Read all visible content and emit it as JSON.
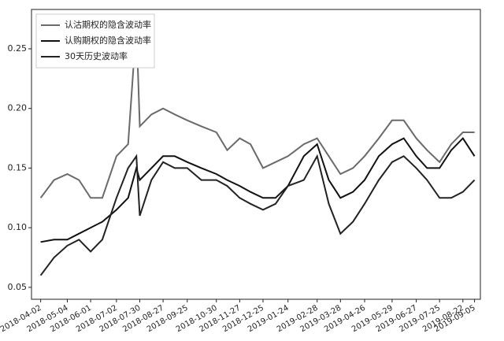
{
  "chart_data": {
    "type": "line",
    "x": [
      "2018-04-02",
      "2018-04-18",
      "2018-05-04",
      "2018-05-18",
      "2018-06-01",
      "2018-06-15",
      "2018-07-02",
      "2018-07-16",
      "2018-07-26",
      "2018-07-30",
      "2018-08-13",
      "2018-08-27",
      "2018-09-10",
      "2018-09-25",
      "2018-10-12",
      "2018-10-30",
      "2018-11-12",
      "2018-11-27",
      "2018-12-10",
      "2018-12-25",
      "2019-01-09",
      "2019-01-24",
      "2019-02-12",
      "2019-02-28",
      "2019-03-14",
      "2019-03-28",
      "2019-04-12",
      "2019-04-26",
      "2019-05-13",
      "2019-05-29",
      "2019-06-12",
      "2019-06-27",
      "2019-07-10",
      "2019-07-25",
      "2019-08-08",
      "2019-08-22",
      "2019-09-05"
    ],
    "series": [
      {
        "name": "认沽期权的隐含波动率",
        "color": "#6a6a6a",
        "values": [
          0.125,
          0.14,
          0.145,
          0.14,
          0.125,
          0.125,
          0.16,
          0.17,
          0.27,
          0.185,
          0.195,
          0.2,
          0.195,
          0.19,
          0.185,
          0.18,
          0.165,
          0.175,
          0.17,
          0.15,
          0.155,
          0.16,
          0.17,
          0.175,
          0.16,
          0.145,
          0.15,
          0.16,
          0.175,
          0.19,
          0.19,
          0.175,
          0.165,
          0.155,
          0.17,
          0.18,
          0.18
        ]
      },
      {
        "name": "认购期权的隐含波动率",
        "color": "#111111",
        "values": [
          0.088,
          0.09,
          0.09,
          0.095,
          0.1,
          0.105,
          0.115,
          0.125,
          0.15,
          0.14,
          0.15,
          0.16,
          0.16,
          0.155,
          0.15,
          0.145,
          0.14,
          0.135,
          0.13,
          0.125,
          0.125,
          0.135,
          0.16,
          0.17,
          0.14,
          0.125,
          0.13,
          0.14,
          0.16,
          0.17,
          0.175,
          0.16,
          0.15,
          0.15,
          0.165,
          0.175,
          0.16
        ]
      },
      {
        "name": "30天历史波动率",
        "color": "#222222",
        "values": [
          0.06,
          0.075,
          0.085,
          0.09,
          0.08,
          0.09,
          0.125,
          0.15,
          0.16,
          0.11,
          0.14,
          0.155,
          0.15,
          0.15,
          0.14,
          0.14,
          0.135,
          0.125,
          0.12,
          0.115,
          0.12,
          0.135,
          0.14,
          0.16,
          0.12,
          0.095,
          0.105,
          0.12,
          0.14,
          0.155,
          0.16,
          0.15,
          0.14,
          0.125,
          0.125,
          0.13,
          0.14
        ]
      }
    ],
    "xlim": [
      "2018-03-22",
      "2019-09-12"
    ],
    "xticks": [
      "2018-04-02",
      "2018-05-04",
      "2018-06-01",
      "2018-07-02",
      "2018-07-30",
      "2018-08-27",
      "2018-09-25",
      "2018-10-30",
      "2018-11-27",
      "2018-12-25",
      "2019-01-24",
      "2019-02-28",
      "2019-03-28",
      "2019-04-26",
      "2019-05-29",
      "2019-06-27",
      "2019-07-25",
      "2019-08-22",
      "2019-09-05"
    ],
    "ylim": [
      0.04,
      0.283
    ],
    "yticks": [
      0.05,
      {
        "value": 0.1,
        "label": "0.10"
      },
      0.15,
      {
        "value": 0.2,
        "label": "0.20"
      },
      0.25
    ],
    "legend": "upper left"
  }
}
